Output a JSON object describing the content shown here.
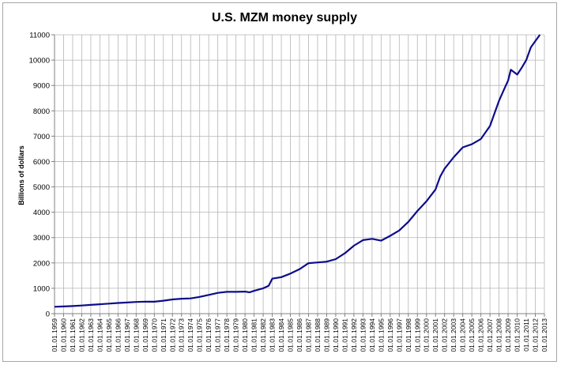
{
  "chart_data": {
    "type": "line",
    "title": "U.S. MZM money supply",
    "xlabel": "",
    "ylabel": "Billions of dollars",
    "ylim": [
      0,
      11000
    ],
    "y_ticks": [
      0,
      1000,
      2000,
      3000,
      4000,
      5000,
      6000,
      7000,
      8000,
      9000,
      10000,
      11000
    ],
    "grid": true,
    "legend": "none",
    "x_tick_labels": [
      "01.01.1959",
      "01.01.1960",
      "01.01.1961",
      "01.01.1962",
      "01.01.1963",
      "01.01.1964",
      "01.01.1965",
      "01.01.1966",
      "01.01.1967",
      "01.01.1968",
      "01.01.1969",
      "01.01.1970",
      "01.01.1971",
      "01.01.1972",
      "01.01.1973",
      "01.01.1974",
      "01.01.1975",
      "01.01.1976",
      "01.01.1977",
      "01.01.1978",
      "01.01.1979",
      "01.01.1980",
      "01.01.1981",
      "01.01.1982",
      "01.01.1983",
      "01.01.1984",
      "01.01.1985",
      "01.01.1986",
      "01.01.1987",
      "01.01.1988",
      "01.01.1989",
      "01.01.1990",
      "01.01.1991",
      "01.01.1992",
      "01.01.1993",
      "01.01.1994",
      "01.01.1995",
      "01.01.1996",
      "01.01.1997",
      "01.01.1998",
      "01.01.1999",
      "01.01.2000",
      "01.01.2001",
      "01.01.2002",
      "01.01.2003",
      "01.01.2004",
      "01.01.2005",
      "01.01.2006",
      "01.01.2007",
      "01.01.2008",
      "01.01.2009",
      "01.01.2010",
      "01.01.2011",
      "01.01.2012",
      "01.01.2013"
    ],
    "series": [
      {
        "name": "MZM",
        "color": "#0d0d8a",
        "x": [
          1959,
          1960,
          1961,
          1962,
          1963,
          1964,
          1965,
          1966,
          1967,
          1968,
          1969,
          1970,
          1971,
          1972,
          1973,
          1974,
          1975,
          1976,
          1977,
          1978,
          1979,
          1980,
          1980.5,
          1981,
          1982,
          1982.6,
          1983,
          1984,
          1985,
          1986,
          1987,
          1988,
          1989,
          1990,
          1991,
          1992,
          1993,
          1994,
          1995,
          1996,
          1997,
          1998,
          1999,
          2000,
          2001,
          2001.5,
          2002,
          2003,
          2004,
          2005,
          2006,
          2007,
          2008,
          2008.5,
          2009,
          2009.3,
          2010,
          2010.5,
          2011,
          2011.5,
          2012,
          2012.5
        ],
        "values": [
          270,
          285,
          300,
          320,
          345,
          370,
          395,
          420,
          440,
          460,
          475,
          470,
          510,
          560,
          590,
          600,
          660,
          740,
          820,
          860,
          860,
          870,
          840,
          900,
          1000,
          1100,
          1380,
          1440,
          1580,
          1750,
          1990,
          2020,
          2050,
          2150,
          2380,
          2680,
          2900,
          2950,
          2880,
          3070,
          3280,
          3620,
          4050,
          4430,
          4900,
          5400,
          5720,
          6170,
          6560,
          6680,
          6890,
          7400,
          8400,
          8800,
          9200,
          9620,
          9430,
          9700,
          10000,
          10500,
          10750,
          11000
        ]
      }
    ]
  }
}
